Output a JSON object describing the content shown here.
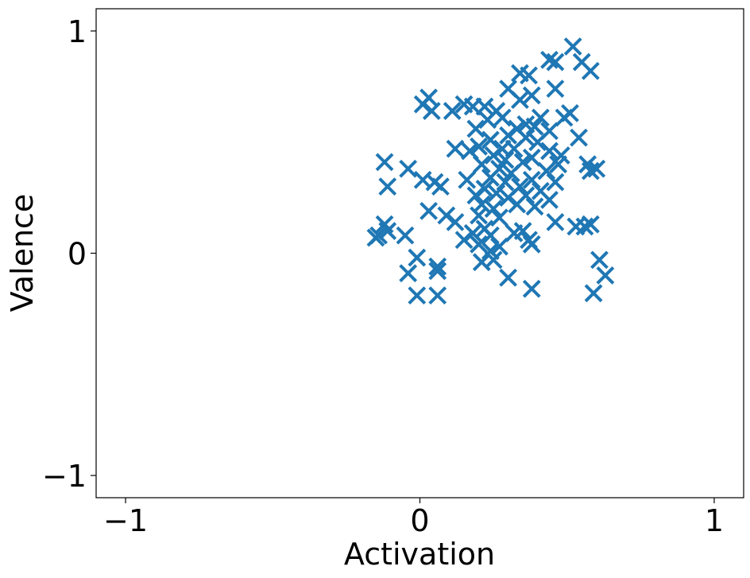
{
  "chart_data": {
    "type": "scatter",
    "xlabel": "Activation",
    "ylabel": "Valence",
    "xlim": [
      -1.1,
      1.1
    ],
    "ylim": [
      -1.1,
      1.1
    ],
    "xticks": [
      -1,
      0,
      1
    ],
    "yticks": [
      -1,
      0,
      1
    ],
    "xtick_labels": [
      "−1",
      "0",
      "1"
    ],
    "ytick_labels": [
      "−1",
      "0",
      "1"
    ],
    "grid": false,
    "marker": "x",
    "color": "#1f77b4",
    "series": [
      {
        "points": [
          [
            0.52,
            0.93
          ],
          [
            0.44,
            0.87
          ],
          [
            0.46,
            0.86
          ],
          [
            0.55,
            0.86
          ],
          [
            0.58,
            0.82
          ],
          [
            0.34,
            0.81
          ],
          [
            0.37,
            0.8
          ],
          [
            0.46,
            0.74
          ],
          [
            0.3,
            0.74
          ],
          [
            0.03,
            0.7
          ],
          [
            0.38,
            0.71
          ],
          [
            0.34,
            0.69
          ],
          [
            0.01,
            0.67
          ],
          [
            0.15,
            0.67
          ],
          [
            0.18,
            0.66
          ],
          [
            0.11,
            0.64
          ],
          [
            0.04,
            0.64
          ],
          [
            0.22,
            0.66
          ],
          [
            0.26,
            0.64
          ],
          [
            0.51,
            0.63
          ],
          [
            0.49,
            0.61
          ],
          [
            0.28,
            0.61
          ],
          [
            0.41,
            0.61
          ],
          [
            0.23,
            0.6
          ],
          [
            0.36,
            0.58
          ],
          [
            0.33,
            0.56
          ],
          [
            0.39,
            0.57
          ],
          [
            0.44,
            0.55
          ],
          [
            0.19,
            0.56
          ],
          [
            0.3,
            0.53
          ],
          [
            0.36,
            0.52
          ],
          [
            0.54,
            0.52
          ],
          [
            0.24,
            0.51
          ],
          [
            0.4,
            0.5
          ],
          [
            0.2,
            0.48
          ],
          [
            0.28,
            0.47
          ],
          [
            0.32,
            0.47
          ],
          [
            0.12,
            0.47
          ],
          [
            0.17,
            0.46
          ],
          [
            0.44,
            0.46
          ],
          [
            0.48,
            0.44
          ],
          [
            0.25,
            0.44
          ],
          [
            0.38,
            0.43
          ],
          [
            0.29,
            0.42
          ],
          [
            0.35,
            0.41
          ],
          [
            0.21,
            0.4
          ],
          [
            0.47,
            0.4
          ],
          [
            0.57,
            0.4
          ],
          [
            0.6,
            0.38
          ],
          [
            0.58,
            0.37
          ],
          [
            0.27,
            0.38
          ],
          [
            0.43,
            0.37
          ],
          [
            0.31,
            0.36
          ],
          [
            -0.12,
            0.41
          ],
          [
            -0.04,
            0.38
          ],
          [
            0.16,
            0.33
          ],
          [
            0.24,
            0.34
          ],
          [
            0.38,
            0.33
          ],
          [
            0.29,
            0.32
          ],
          [
            0.46,
            0.32
          ],
          [
            0.01,
            0.33
          ],
          [
            0.05,
            0.32
          ],
          [
            -0.11,
            0.3
          ],
          [
            0.07,
            0.3
          ],
          [
            0.34,
            0.3
          ],
          [
            0.22,
            0.29
          ],
          [
            0.41,
            0.28
          ],
          [
            0.26,
            0.27
          ],
          [
            0.19,
            0.26
          ],
          [
            0.36,
            0.26
          ],
          [
            0.3,
            0.25
          ],
          [
            0.44,
            0.24
          ],
          [
            0.21,
            0.22
          ],
          [
            0.33,
            0.22
          ],
          [
            0.39,
            0.21
          ],
          [
            0.25,
            0.2
          ],
          [
            0.03,
            0.19
          ],
          [
            0.09,
            0.17
          ],
          [
            0.2,
            0.17
          ],
          [
            0.27,
            0.16
          ],
          [
            0.46,
            0.14
          ],
          [
            0.12,
            0.14
          ],
          [
            0.53,
            0.12
          ],
          [
            0.56,
            0.12
          ],
          [
            0.58,
            0.13
          ],
          [
            -0.12,
            0.13
          ],
          [
            -0.11,
            0.1
          ],
          [
            0.22,
            0.11
          ],
          [
            0.35,
            0.1
          ],
          [
            0.18,
            0.09
          ],
          [
            0.32,
            0.09
          ],
          [
            0.24,
            0.08
          ],
          [
            -0.05,
            0.08
          ],
          [
            -0.14,
            0.08
          ],
          [
            -0.15,
            0.07
          ],
          [
            0.15,
            0.06
          ],
          [
            0.37,
            0.06
          ],
          [
            0.2,
            0.04
          ],
          [
            0.38,
            0.04
          ],
          [
            0.27,
            0.03
          ],
          [
            0.24,
            0.01
          ],
          [
            -0.01,
            -0.02
          ],
          [
            0.61,
            -0.03
          ],
          [
            0.21,
            -0.04
          ],
          [
            0.25,
            -0.03
          ],
          [
            0.06,
            -0.06
          ],
          [
            0.06,
            -0.08
          ],
          [
            -0.04,
            -0.09
          ],
          [
            0.63,
            -0.1
          ],
          [
            0.3,
            -0.11
          ],
          [
            0.38,
            -0.16
          ],
          [
            -0.01,
            -0.19
          ],
          [
            0.06,
            -0.19
          ],
          [
            0.59,
            -0.18
          ]
        ]
      }
    ]
  }
}
